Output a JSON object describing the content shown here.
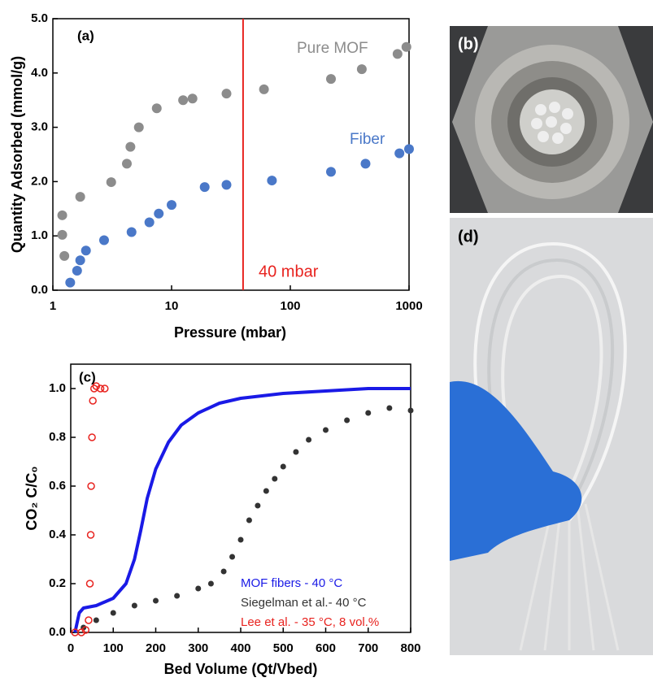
{
  "chart_data": [
    {
      "type": "scatter",
      "panel_label": "(a)",
      "xlabel": "Pressure (mbar)",
      "ylabel": "Quantity Adsorbed (mmol/g)",
      "xscale": "log",
      "xlim": [
        1,
        1000
      ],
      "xticks": [
        1,
        10,
        100,
        1000
      ],
      "ylim": [
        0,
        5
      ],
      "yticks": [
        {
          "value": 0,
          "label": "0.0"
        },
        {
          "value": 1,
          "label": "1.0"
        },
        {
          "value": 2,
          "label": "2.0"
        },
        {
          "value": 3,
          "label": "3.0"
        },
        {
          "value": 4,
          "label": "4.0"
        },
        {
          "value": 5,
          "label": "5.0"
        }
      ],
      "vline": {
        "x": 40,
        "label": "40 mbar",
        "color": "#e8231f"
      },
      "series": [
        {
          "name": "Pure MOF",
          "color": "#8c8c8c",
          "marker": "filled",
          "x": [
            1.2,
            1.2,
            1.25,
            1.7,
            3.1,
            4.2,
            4.5,
            5.3,
            7.5,
            12.5,
            15,
            29,
            60,
            220,
            400,
            800,
            950
          ],
          "values": [
            1.38,
            1.02,
            0.63,
            1.72,
            1.99,
            2.33,
            2.64,
            3.0,
            3.35,
            3.5,
            3.53,
            3.62,
            3.7,
            3.89,
            4.07,
            4.35,
            4.48
          ]
        },
        {
          "name": "Fiber",
          "color": "#4a78c8",
          "marker": "filled",
          "x": [
            1.4,
            1.6,
            1.7,
            1.9,
            2.7,
            4.6,
            6.5,
            7.8,
            10,
            19,
            29,
            70,
            220,
            430,
            830,
            1000
          ],
          "values": [
            0.14,
            0.36,
            0.55,
            0.73,
            0.92,
            1.07,
            1.25,
            1.41,
            1.57,
            1.9,
            1.94,
            2.02,
            2.18,
            2.33,
            2.52,
            2.6
          ]
        }
      ]
    },
    {
      "type": "scatter",
      "panel_label": "(c)",
      "xlabel": "Bed Volume (Qt/Vbed)",
      "ylabel": "CO₂ C/C₀",
      "xlim": [
        0,
        800
      ],
      "xticks": [
        0,
        100,
        200,
        300,
        400,
        500,
        600,
        700,
        800
      ],
      "ylim": [
        0,
        1.1
      ],
      "yticks": [
        {
          "value": 0,
          "label": "0.0"
        },
        {
          "value": 0.2,
          "label": "0.2"
        },
        {
          "value": 0.4,
          "label": "0.4"
        },
        {
          "value": 0.6,
          "label": "0.6"
        },
        {
          "value": 0.8,
          "label": "0.8"
        },
        {
          "value": 1,
          "label": "1.0"
        }
      ],
      "legend": "lower right",
      "series": [
        {
          "name": "MOF fibers - 40 °C",
          "color": "#1a1ae6",
          "marker": "line",
          "x": [
            10,
            20,
            30,
            60,
            100,
            130,
            150,
            165,
            180,
            200,
            230,
            260,
            300,
            350,
            400,
            500,
            600,
            700,
            800
          ],
          "values": [
            0,
            0.08,
            0.1,
            0.11,
            0.14,
            0.2,
            0.3,
            0.42,
            0.55,
            0.67,
            0.78,
            0.85,
            0.9,
            0.94,
            0.96,
            0.98,
            0.99,
            1.0,
            1.0
          ]
        },
        {
          "name": "Siegelman et al.- 40 °C",
          "color": "#333333",
          "marker": "filled",
          "x": [
            30,
            60,
            100,
            150,
            200,
            250,
            300,
            330,
            360,
            380,
            400,
            420,
            440,
            460,
            480,
            500,
            530,
            560,
            600,
            650,
            700,
            750,
            800
          ],
          "values": [
            0.02,
            0.05,
            0.08,
            0.11,
            0.13,
            0.15,
            0.18,
            0.2,
            0.25,
            0.31,
            0.38,
            0.46,
            0.52,
            0.58,
            0.63,
            0.68,
            0.74,
            0.79,
            0.83,
            0.87,
            0.9,
            0.92,
            0.91
          ]
        },
        {
          "name": "Lee et al. - 35 °C, 8 vol.%",
          "color": "#e8231f",
          "marker": "open",
          "x": [
            10,
            25,
            35,
            42,
            45,
            47,
            48,
            50,
            52,
            55,
            60,
            70,
            80
          ],
          "values": [
            0,
            0,
            0.01,
            0.05,
            0.2,
            0.4,
            0.6,
            0.8,
            0.95,
            1.0,
            1.01,
            1.0,
            1.0
          ]
        }
      ]
    }
  ],
  "panels": {
    "b": "(b)",
    "d": "(d)"
  }
}
